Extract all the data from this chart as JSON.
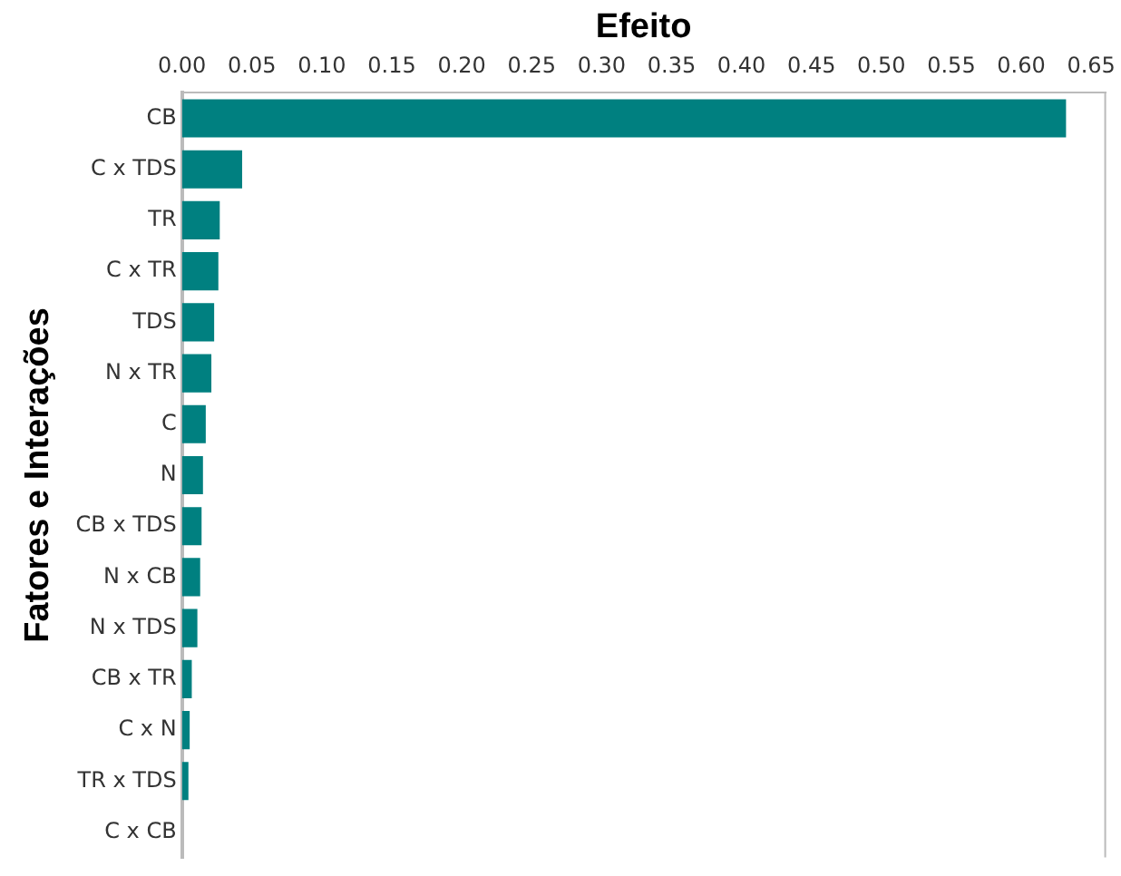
{
  "chart_data": {
    "type": "bar",
    "orientation": "horizontal",
    "xlabel": "Efeito",
    "ylabel": "Fatores e Interações",
    "categories": [
      "CB",
      "C x TDS",
      "TR",
      "C x TR",
      "TDS",
      "N x TR",
      "C",
      "N",
      "CB x TDS",
      "N x CB",
      "N x TDS",
      "CB x TR",
      "C x N",
      "TR x TDS",
      "C x CB"
    ],
    "values": [
      0.632,
      0.043,
      0.027,
      0.026,
      0.023,
      0.021,
      0.017,
      0.015,
      0.014,
      0.013,
      0.011,
      0.007,
      0.0055,
      0.0046,
      0
    ],
    "color": "#008080",
    "xlim": [
      0,
      0.66
    ],
    "xticks": [
      {
        "value": 0,
        "label": "0.00"
      },
      {
        "value": 0.05,
        "label": "0.05"
      },
      {
        "value": 0.1,
        "label": "0.10"
      },
      {
        "value": 0.15,
        "label": "0.15"
      },
      {
        "value": 0.2,
        "label": "0.20"
      },
      {
        "value": 0.25,
        "label": "0.25"
      },
      {
        "value": 0.3,
        "label": "0.30"
      },
      {
        "value": 0.35,
        "label": "0.35"
      },
      {
        "value": 0.4,
        "label": "0.40"
      },
      {
        "value": 0.45,
        "label": "0.45"
      },
      {
        "value": 0.5,
        "label": "0.50"
      },
      {
        "value": 0.55,
        "label": "0.55"
      },
      {
        "value": 0.6,
        "label": "0.60"
      },
      {
        "value": 0.65,
        "label": "0.65"
      }
    ],
    "grid": false,
    "legend": false
  }
}
